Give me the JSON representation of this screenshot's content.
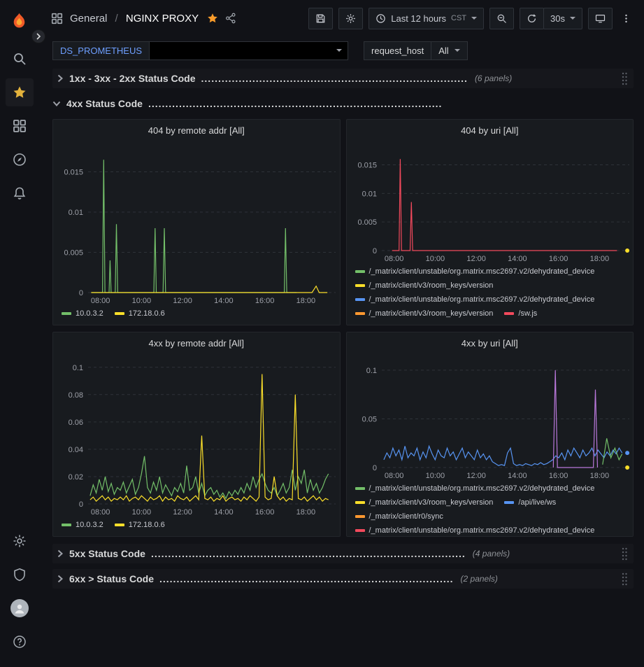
{
  "header": {
    "breadcrumb_section": "General",
    "breadcrumb_sep": "/",
    "breadcrumb_title": "NGINX PROXY",
    "time_range": "Last 12 hours",
    "timezone": "CST",
    "refresh_interval": "30s"
  },
  "variables": {
    "ds_label": "DS_PROMETHEUS",
    "ds_value": "",
    "host_label": "request_host",
    "host_value": "All"
  },
  "rows": [
    {
      "title": "1xx - 3xx - 2xx Status Code",
      "dots": "..............................................................................",
      "count": "(6 panels)"
    },
    {
      "title": "4xx Status Code",
      "dots": "......................................................................................",
      "count": ""
    },
    {
      "title": "5xx Status Code",
      "dots": "............................................................................................",
      "count": "(4 panels)"
    },
    {
      "title": "6xx > Status Code",
      "dots": "......................................................................................",
      "count": "(2 panels)"
    }
  ],
  "panels": [
    {
      "title": "404 by remote addr [All]",
      "legend_rows": [
        [
          {
            "color": "#73BF69",
            "label": "10.0.3.2"
          },
          {
            "color": "#FADE2A",
            "label": "172.18.0.6"
          }
        ]
      ]
    },
    {
      "title": "404 by uri [All]",
      "legend_rows": [
        [
          {
            "color": "#73BF69",
            "label": "/_matrix/client/unstable/org.matrix.msc2697.v2/dehydrated_device"
          }
        ],
        [
          {
            "color": "#FADE2A",
            "label": "/_matrix/client/v3/room_keys/version"
          }
        ],
        [
          {
            "color": "#5794F2",
            "label": "/_matrix/client/unstable/org.matrix.msc2697.v2/dehydrated_device"
          }
        ],
        [
          {
            "color": "#FF9830",
            "label": "/_matrix/client/v3/room_keys/version"
          },
          {
            "color": "#F2495C",
            "label": "/sw.js"
          }
        ]
      ]
    },
    {
      "title": "4xx by remote addr [All]",
      "legend_rows": [
        [
          {
            "color": "#73BF69",
            "label": "10.0.3.2"
          },
          {
            "color": "#FADE2A",
            "label": "172.18.0.6"
          }
        ]
      ]
    },
    {
      "title": "4xx by uri [All]",
      "legend_rows": [
        [
          {
            "color": "#73BF69",
            "label": "/_matrix/client/unstable/org.matrix.msc2697.v2/dehydrated_device"
          }
        ],
        [
          {
            "color": "#FADE2A",
            "label": "/_matrix/client/v3/room_keys/version"
          },
          {
            "color": "#5794F2",
            "label": "/api/live/ws"
          }
        ],
        [
          {
            "color": "#FF9830",
            "label": "/_matrix/client/r0/sync"
          }
        ],
        [
          {
            "color": "#F2495C",
            "label": "/_matrix/client/unstable/org.matrix.msc2697.v2/dehydrated_device"
          }
        ]
      ]
    }
  ],
  "chart_data": [
    {
      "type": "line",
      "title": "404 by remote addr [All]",
      "x_min": 7.4,
      "x_max": 19.45,
      "y_min": 0,
      "y_max": 0.018,
      "yticks": [
        {
          "v": 0,
          "label": "0"
        },
        {
          "v": 0.005,
          "label": "0.005"
        },
        {
          "v": 0.01,
          "label": "0.01"
        },
        {
          "v": 0.015,
          "label": "0.015"
        }
      ],
      "xticks": [
        {
          "v": 8,
          "label": "08:00"
        },
        {
          "v": 10,
          "label": "10:00"
        },
        {
          "v": 12,
          "label": "12:00"
        },
        {
          "v": 14,
          "label": "14:00"
        },
        {
          "v": 16,
          "label": "16:00"
        },
        {
          "v": 18,
          "label": "18:00"
        }
      ],
      "series": [
        {
          "name": "10.0.3.2",
          "color": "#73BF69",
          "points": [
            [
              7.55,
              0
            ],
            [
              8.1,
              0
            ],
            [
              8.16,
              0.0165
            ],
            [
              8.22,
              0
            ],
            [
              8.42,
              0
            ],
            [
              8.47,
              0.004
            ],
            [
              8.52,
              0
            ],
            [
              8.72,
              0
            ],
            [
              8.78,
              0.0085
            ],
            [
              8.84,
              0
            ],
            [
              10.6,
              0
            ],
            [
              10.66,
              0.008
            ],
            [
              10.72,
              0
            ],
            [
              11.05,
              0
            ],
            [
              11.11,
              0.008
            ],
            [
              11.17,
              0
            ],
            [
              16.95,
              0
            ],
            [
              17.01,
              0.008
            ],
            [
              17.07,
              0
            ],
            [
              17.55,
              0
            ]
          ]
        },
        {
          "name": "172.18.0.6",
          "color": "#FADE2A",
          "points": [
            [
              7.55,
              0
            ],
            [
              18.3,
              0
            ],
            [
              18.5,
              0.0008
            ],
            [
              18.65,
              0
            ],
            [
              19.05,
              0
            ]
          ]
        }
      ]
    },
    {
      "type": "line",
      "title": "404 by uri [All]",
      "x_min": 7.4,
      "x_max": 19.45,
      "y_min": 0,
      "y_max": 0.018,
      "yticks": [
        {
          "v": 0,
          "label": "0"
        },
        {
          "v": 0.005,
          "label": "0.005"
        },
        {
          "v": 0.01,
          "label": "0.01"
        },
        {
          "v": 0.015,
          "label": "0.015"
        }
      ],
      "xticks": [
        {
          "v": 8,
          "label": "08:00"
        },
        {
          "v": 10,
          "label": "10:00"
        },
        {
          "v": 12,
          "label": "12:00"
        },
        {
          "v": 14,
          "label": "14:00"
        },
        {
          "v": 16,
          "label": "16:00"
        },
        {
          "v": 18,
          "label": "18:00"
        }
      ],
      "series": [
        {
          "name": "/sw.js",
          "color": "#F2495C",
          "points": [
            [
              7.9,
              0
            ],
            [
              8.24,
              0
            ],
            [
              8.3,
              0.016
            ],
            [
              8.36,
              0
            ],
            [
              8.78,
              0
            ],
            [
              8.84,
              0.0085
            ],
            [
              8.9,
              0
            ],
            [
              18.85,
              0
            ]
          ]
        },
        {
          "name": "/_matrix/client/v3/room_keys/version",
          "color": "#FADE2A",
          "points": [
            [
              19.35,
              0
            ]
          ],
          "end_dot": true
        }
      ]
    },
    {
      "type": "line",
      "title": "4xx by remote addr [All]",
      "x_min": 7.4,
      "x_max": 19.45,
      "y_min": 0,
      "y_max": 0.105,
      "yticks": [
        {
          "v": 0,
          "label": "0"
        },
        {
          "v": 0.02,
          "label": "0.02"
        },
        {
          "v": 0.04,
          "label": "0.04"
        },
        {
          "v": 0.06,
          "label": "0.06"
        },
        {
          "v": 0.08,
          "label": "0.08"
        },
        {
          "v": 0.1,
          "label": "0.1"
        }
      ],
      "xticks": [
        {
          "v": 8,
          "label": "08:00"
        },
        {
          "v": 10,
          "label": "10:00"
        },
        {
          "v": 12,
          "label": "12:00"
        },
        {
          "v": 14,
          "label": "14:00"
        },
        {
          "v": 16,
          "label": "16:00"
        },
        {
          "v": 18,
          "label": "18:00"
        }
      ],
      "series": [
        {
          "name": "10.0.3.2",
          "color": "#73BF69",
          "x_start": 7.5,
          "x_end": 19.1,
          "values": [
            0.006,
            0.014,
            0.008,
            0.018,
            0.01,
            0.02,
            0.009,
            0.015,
            0.007,
            0.012,
            0.01,
            0.016,
            0.008,
            0.013,
            0.018,
            0.007,
            0.012,
            0.022,
            0.035,
            0.012,
            0.008,
            0.016,
            0.01,
            0.02,
            0.008,
            0.014,
            0.01,
            0.006,
            0.012,
            0.009,
            0.015,
            0.008,
            0.028,
            0.01,
            0.012,
            0.02,
            0.008,
            0.015,
            0.006,
            0.01,
            0.012,
            0.007,
            0.01,
            0.005,
            0.008,
            0.004,
            0.009,
            0.006,
            0.01,
            0.007,
            0.012,
            0.008,
            0.015,
            0.01,
            0.02,
            0.012,
            0.018,
            0.022,
            0.015,
            0.01,
            0.008,
            0.012,
            0.006,
            0.01,
            0.015,
            0.008,
            0.012,
            0.025,
            0.01,
            0.02,
            0.015,
            0.025,
            0.008,
            0.018,
            0.01,
            0.015,
            0.008,
            0.012,
            0.018,
            0.022
          ]
        },
        {
          "name": "172.18.0.6",
          "color": "#FADE2A",
          "x_start": 7.5,
          "x_end": 19.1,
          "values": [
            0.003,
            0.005,
            0.002,
            0.004,
            0.006,
            0.003,
            0.005,
            0.002,
            0.004,
            0.003,
            0.005,
            0.003,
            0.006,
            0.002,
            0.004,
            0.005,
            0.003,
            0.006,
            0.004,
            0.002,
            0.005,
            0.003,
            0.004,
            0.006,
            0.002,
            0.005,
            0.003,
            0.004,
            0.002,
            0.006,
            0.004,
            0.003,
            0.005,
            0.002,
            0.004,
            0.006,
            0.003,
            0.05,
            0.004,
            0.003,
            0.005,
            0.002,
            0.004,
            0.003,
            0.006,
            0.002,
            0.004,
            0.005,
            0.003,
            0.004,
            0.002,
            0.005,
            0.003,
            0.006,
            0.004,
            0.002,
            0.005,
            0.095,
            0.005,
            0.003,
            0.004,
            0.02,
            0.006,
            0.003,
            0.005,
            0.002,
            0.004,
            0.003,
            0.08,
            0.004,
            0.003,
            0.005,
            0.002,
            0.004,
            0.006,
            0.003,
            0.005,
            0.002,
            0.004,
            0.003
          ]
        }
      ]
    },
    {
      "type": "line",
      "title": "4xx by uri [All]",
      "x_min": 7.4,
      "x_max": 19.45,
      "y_min": 0,
      "y_max": 0.11,
      "yticks": [
        {
          "v": 0,
          "label": "0"
        },
        {
          "v": 0.05,
          "label": "0.05"
        },
        {
          "v": 0.1,
          "label": "0.1"
        }
      ],
      "xticks": [
        {
          "v": 8,
          "label": "08:00"
        },
        {
          "v": 10,
          "label": "10:00"
        },
        {
          "v": 12,
          "label": "12:00"
        },
        {
          "v": 14,
          "label": "14:00"
        },
        {
          "v": 16,
          "label": "16:00"
        },
        {
          "v": 18,
          "label": "18:00"
        }
      ],
      "series": [
        {
          "name": "/api/live/ws",
          "color": "#5794F2",
          "x_start": 7.5,
          "x_end": 19.1,
          "values": [
            0.008,
            0.015,
            0.01,
            0.02,
            0.012,
            0.018,
            0.008,
            0.022,
            0.01,
            0.015,
            0.012,
            0.02,
            0.008,
            0.016,
            0.01,
            0.022,
            0.014,
            0.008,
            0.018,
            0.012,
            0.01,
            0.02,
            0.012,
            0.016,
            0.008,
            0.014,
            0.02,
            0.01,
            0.016,
            0.012,
            0.008,
            0.018,
            0.01,
            0.014,
            0.008,
            0.012,
            0.006,
            0.004,
            0.002,
            0.003,
            0.002,
            0.015,
            0.02,
            0.004,
            0.002,
            0.003,
            0.002,
            0.004,
            0.003,
            0.002,
            0.004,
            0.003,
            0.005,
            0.003,
            0.004,
            0.006,
            0.008,
            0.012,
            0.01,
            0.015,
            0.008,
            0.018,
            0.012,
            0.02,
            0.015,
            0.01,
            0.018,
            0.012,
            0.015,
            0.02,
            0.012,
            0.018,
            0.014,
            0.01,
            0.016,
            0.012,
            0.018,
            0.014,
            0.02,
            0.015
          ]
        },
        {
          "name": "/_matrix/client/r0/sync",
          "color": "#B877D9",
          "points": [
            [
              15.75,
              0
            ],
            [
              15.85,
              0.1
            ],
            [
              15.95,
              0
            ],
            [
              17.7,
              0
            ],
            [
              17.8,
              0.08
            ],
            [
              17.9,
              0
            ]
          ]
        },
        {
          "name": "/_matrix/client/unstable/org.matrix.msc2697.v2/dehydrated_device",
          "color": "#73BF69",
          "points": [
            [
              18.15,
              0.003
            ],
            [
              18.35,
              0.03
            ],
            [
              18.55,
              0.01
            ],
            [
              18.75,
              0.02
            ],
            [
              18.95,
              0.008
            ],
            [
              19.1,
              0.014
            ]
          ]
        },
        {
          "name": "",
          "color": "#5794F2",
          "points": [
            [
              19.35,
              0.015
            ]
          ],
          "end_dot": true
        },
        {
          "name": "",
          "color": "#FADE2A",
          "points": [
            [
              19.35,
              0
            ]
          ],
          "end_dot": true
        }
      ]
    }
  ]
}
